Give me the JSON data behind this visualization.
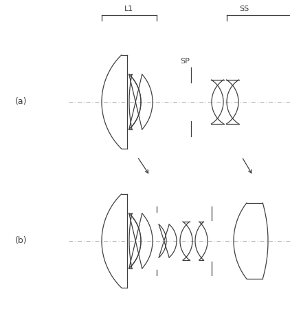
{
  "bg_color": "#ffffff",
  "line_color": "#404040",
  "label_a": "(a)",
  "label_b": "(b)",
  "label_L1": "L1",
  "label_SP": "SP",
  "label_SS": "SS",
  "fig_width": 4.22,
  "fig_height": 4.62,
  "dpi": 100
}
